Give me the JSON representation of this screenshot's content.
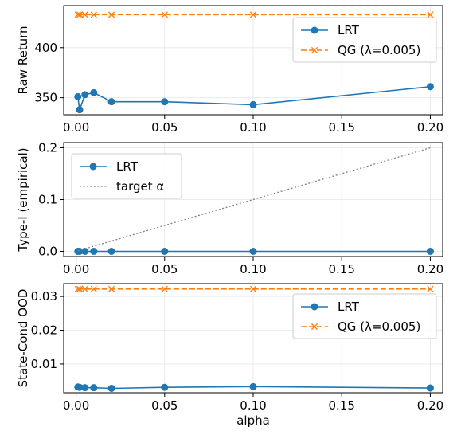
{
  "chart_data": [
    {
      "type": "line",
      "title": "",
      "xlabel": "",
      "ylabel": "Raw Return",
      "xlim": [
        -0.007,
        0.207
      ],
      "ylim": [
        333,
        442
      ],
      "xticks": [
        "0.00",
        "0.05",
        "0.10",
        "0.15",
        "0.20"
      ],
      "yticks": [
        "350",
        "400"
      ],
      "grid": true,
      "legend_position": "top-right",
      "series": [
        {
          "name": "LRT",
          "color": "#1f77b4",
          "style": "solid",
          "marker": "circle",
          "x": [
            0.001,
            0.002,
            0.005,
            0.01,
            0.02,
            0.05,
            0.1,
            0.2
          ],
          "y": [
            351,
            338,
            353,
            355,
            346,
            346,
            343,
            361
          ]
        },
        {
          "name": "QG (λ=0.005)",
          "color": "#ff7f0e",
          "style": "dashed",
          "marker": "x",
          "x": [
            0.001,
            0.002,
            0.005,
            0.01,
            0.02,
            0.05,
            0.1,
            0.2
          ],
          "y": [
            433,
            433,
            433,
            433,
            433,
            433,
            433,
            433
          ]
        }
      ]
    },
    {
      "type": "line",
      "title": "",
      "xlabel": "",
      "ylabel": "Type-I (empirical)",
      "xlim": [
        -0.007,
        0.207
      ],
      "ylim": [
        -0.01,
        0.21
      ],
      "xticks": [
        "0.00",
        "0.05",
        "0.10",
        "0.15",
        "0.20"
      ],
      "yticks": [
        "0.0",
        "0.1",
        "0.2"
      ],
      "grid": true,
      "legend_position": "top-left",
      "series": [
        {
          "name": "LRT",
          "color": "#1f77b4",
          "style": "solid",
          "marker": "circle",
          "x": [
            0.001,
            0.002,
            0.005,
            0.01,
            0.02,
            0.05,
            0.1,
            0.2
          ],
          "y": [
            0,
            0,
            0,
            0,
            0,
            0,
            0,
            0
          ]
        },
        {
          "name": "target α",
          "color": "#808080",
          "style": "dotted",
          "marker": "none",
          "x": [
            0.001,
            0.2
          ],
          "y": [
            0.001,
            0.2
          ]
        }
      ]
    },
    {
      "type": "line",
      "title": "",
      "xlabel": "alpha",
      "ylabel": "State-Cond OOD",
      "xlim": [
        -0.007,
        0.207
      ],
      "ylim": [
        0.0015,
        0.0338
      ],
      "xticks": [
        "0.00",
        "0.05",
        "0.10",
        "0.15",
        "0.20"
      ],
      "yticks": [
        "0.01",
        "0.02",
        "0.03"
      ],
      "grid": true,
      "legend_position": "right",
      "series": [
        {
          "name": "LRT",
          "color": "#1f77b4",
          "style": "solid",
          "marker": "circle",
          "x": [
            0.001,
            0.002,
            0.005,
            0.01,
            0.02,
            0.05,
            0.1,
            0.2
          ],
          "y": [
            0.0032,
            0.0031,
            0.003,
            0.003,
            0.0028,
            0.0031,
            0.0033,
            0.0029
          ]
        },
        {
          "name": "QG (λ=0.005)",
          "color": "#ff7f0e",
          "style": "dashed",
          "marker": "x",
          "x": [
            0.001,
            0.002,
            0.005,
            0.01,
            0.02,
            0.05,
            0.1,
            0.2
          ],
          "y": [
            0.0322,
            0.0322,
            0.0322,
            0.0322,
            0.0322,
            0.0322,
            0.0322,
            0.0322
          ]
        }
      ]
    }
  ]
}
